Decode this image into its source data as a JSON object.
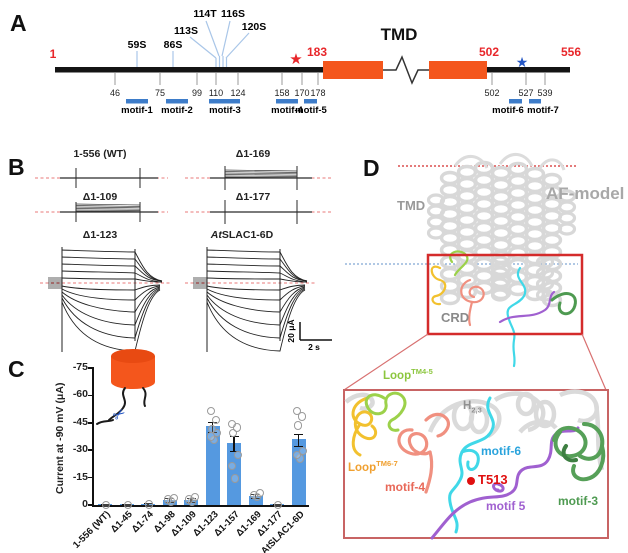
{
  "panelA": {
    "label": "A",
    "tmd_label": "TMD",
    "residue_start": "1",
    "residue_cleavage": "183",
    "residue_tmd_end": "502",
    "residue_end": "556",
    "phospho_sites": [
      "59S",
      "86S",
      "113S",
      "114T",
      "116S",
      "120S"
    ],
    "positions": [
      "46",
      "75",
      "99",
      "110",
      "124",
      "158",
      "170",
      "178",
      "502",
      "527",
      "539"
    ],
    "motifs": [
      "motif-1",
      "motif-2",
      "motif-3",
      "motif-4",
      "motif-5",
      "motif-6",
      "motif-7"
    ]
  },
  "panelB": {
    "label": "B",
    "traces": [
      "1-556 (WT)",
      "Δ1-169",
      "Δ1-109",
      "Δ1-177",
      "Δ1-123"
    ],
    "trace_atslac": {
      "italic": "At",
      "rest": "SLAC1-6D"
    },
    "scale_current": "20 μA",
    "scale_time": "2 s"
  },
  "panelC": {
    "label": "C"
  },
  "chart_data": {
    "type": "bar",
    "categories": [
      "1-556 (WT)",
      "Δ1-45",
      "Δ1-74",
      "Δ1-98",
      "Δ1-109",
      "Δ1-123",
      "Δ1-157",
      "Δ1-169",
      "Δ1-177",
      "AtSLAC1-6D"
    ],
    "values": [
      -0.4,
      -0.4,
      -0.8,
      -3,
      -3,
      -43,
      -34,
      -5,
      -0.5,
      -36
    ],
    "errors": [
      0.2,
      0.2,
      0.3,
      0.8,
      0.8,
      2.5,
      4,
      0.8,
      0.2,
      3
    ],
    "points": [
      [
        -0.4
      ],
      [
        -0.4
      ],
      [
        -0.8
      ],
      [
        -2.5,
        -3.5,
        -4.5
      ],
      [
        -2.5,
        -3.5,
        -5
      ],
      [
        -36,
        -38,
        -40,
        -42,
        -47,
        -52
      ],
      [
        -15,
        -22,
        -28,
        -40,
        -43,
        -45
      ],
      [
        -5,
        -6,
        -7
      ],
      [
        -0.5
      ],
      [
        -26,
        -28,
        -30,
        -44,
        -49,
        -52
      ]
    ],
    "ylabel": "Current at -90 mV (μA)",
    "yticks": [
      0,
      -15,
      -30,
      -45,
      -60,
      -75
    ],
    "ylim": [
      0,
      -75
    ],
    "grid": false,
    "bar_color": "#5599E0"
  },
  "panelD": {
    "label": "D",
    "tmd_label": "TMD",
    "model_label": "AF-model",
    "crd_label": "CRD",
    "loop_tm45": {
      "text": "Loop",
      "sup": "TM4-5"
    },
    "h23": {
      "text": "H",
      "sub": "2,3"
    },
    "loop_tm67": {
      "text": "Loop",
      "sup": "TM6-7"
    },
    "motif4_label": "motif-4",
    "motif6_label": "motif-6",
    "motif5_label": "motif 5",
    "motif3_label": "motif-3",
    "t513_label": "T513"
  },
  "icons": {
    "red_star": "★",
    "blue_star": "★",
    "scissors": "✂"
  },
  "colors": {
    "backbone": "#141414",
    "tmd_box": "#F4561C",
    "residue_red": "#E8262A",
    "motif_blue": "#3D7CC9",
    "bar_blue": "#5599E0",
    "box_red": "#D42B2B",
    "star_blue": "#2456C4"
  }
}
